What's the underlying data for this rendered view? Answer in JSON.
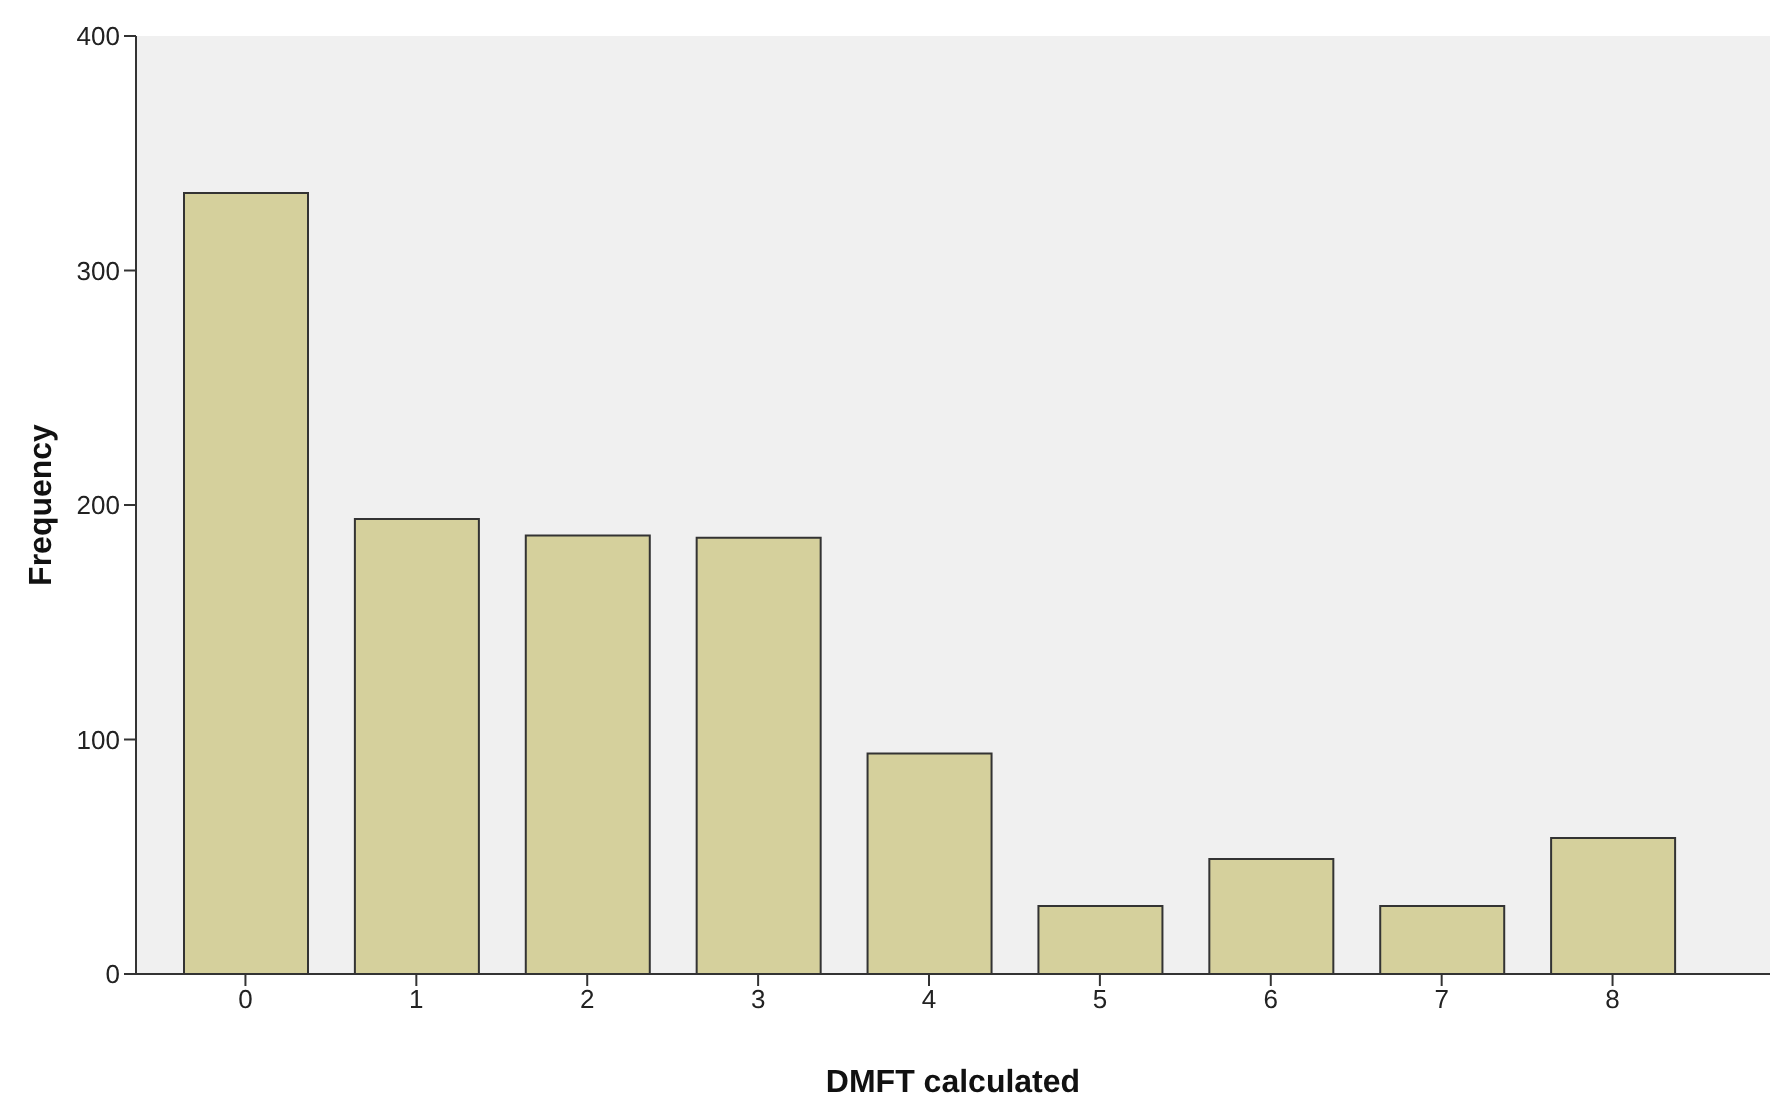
{
  "chart_data": {
    "type": "bar",
    "xlabel": "DMFT calculated",
    "ylabel": "Frequency",
    "categories": [
      "0",
      "1",
      "2",
      "3",
      "4",
      "5",
      "6",
      "7",
      "8"
    ],
    "values": [
      333,
      194,
      187,
      186,
      94,
      29,
      49,
      29,
      58
    ],
    "color": "#d5d09c",
    "ylim": [
      0,
      400
    ],
    "yticks": [
      0,
      100,
      200,
      300,
      400
    ],
    "grid": false,
    "legend": false
  }
}
